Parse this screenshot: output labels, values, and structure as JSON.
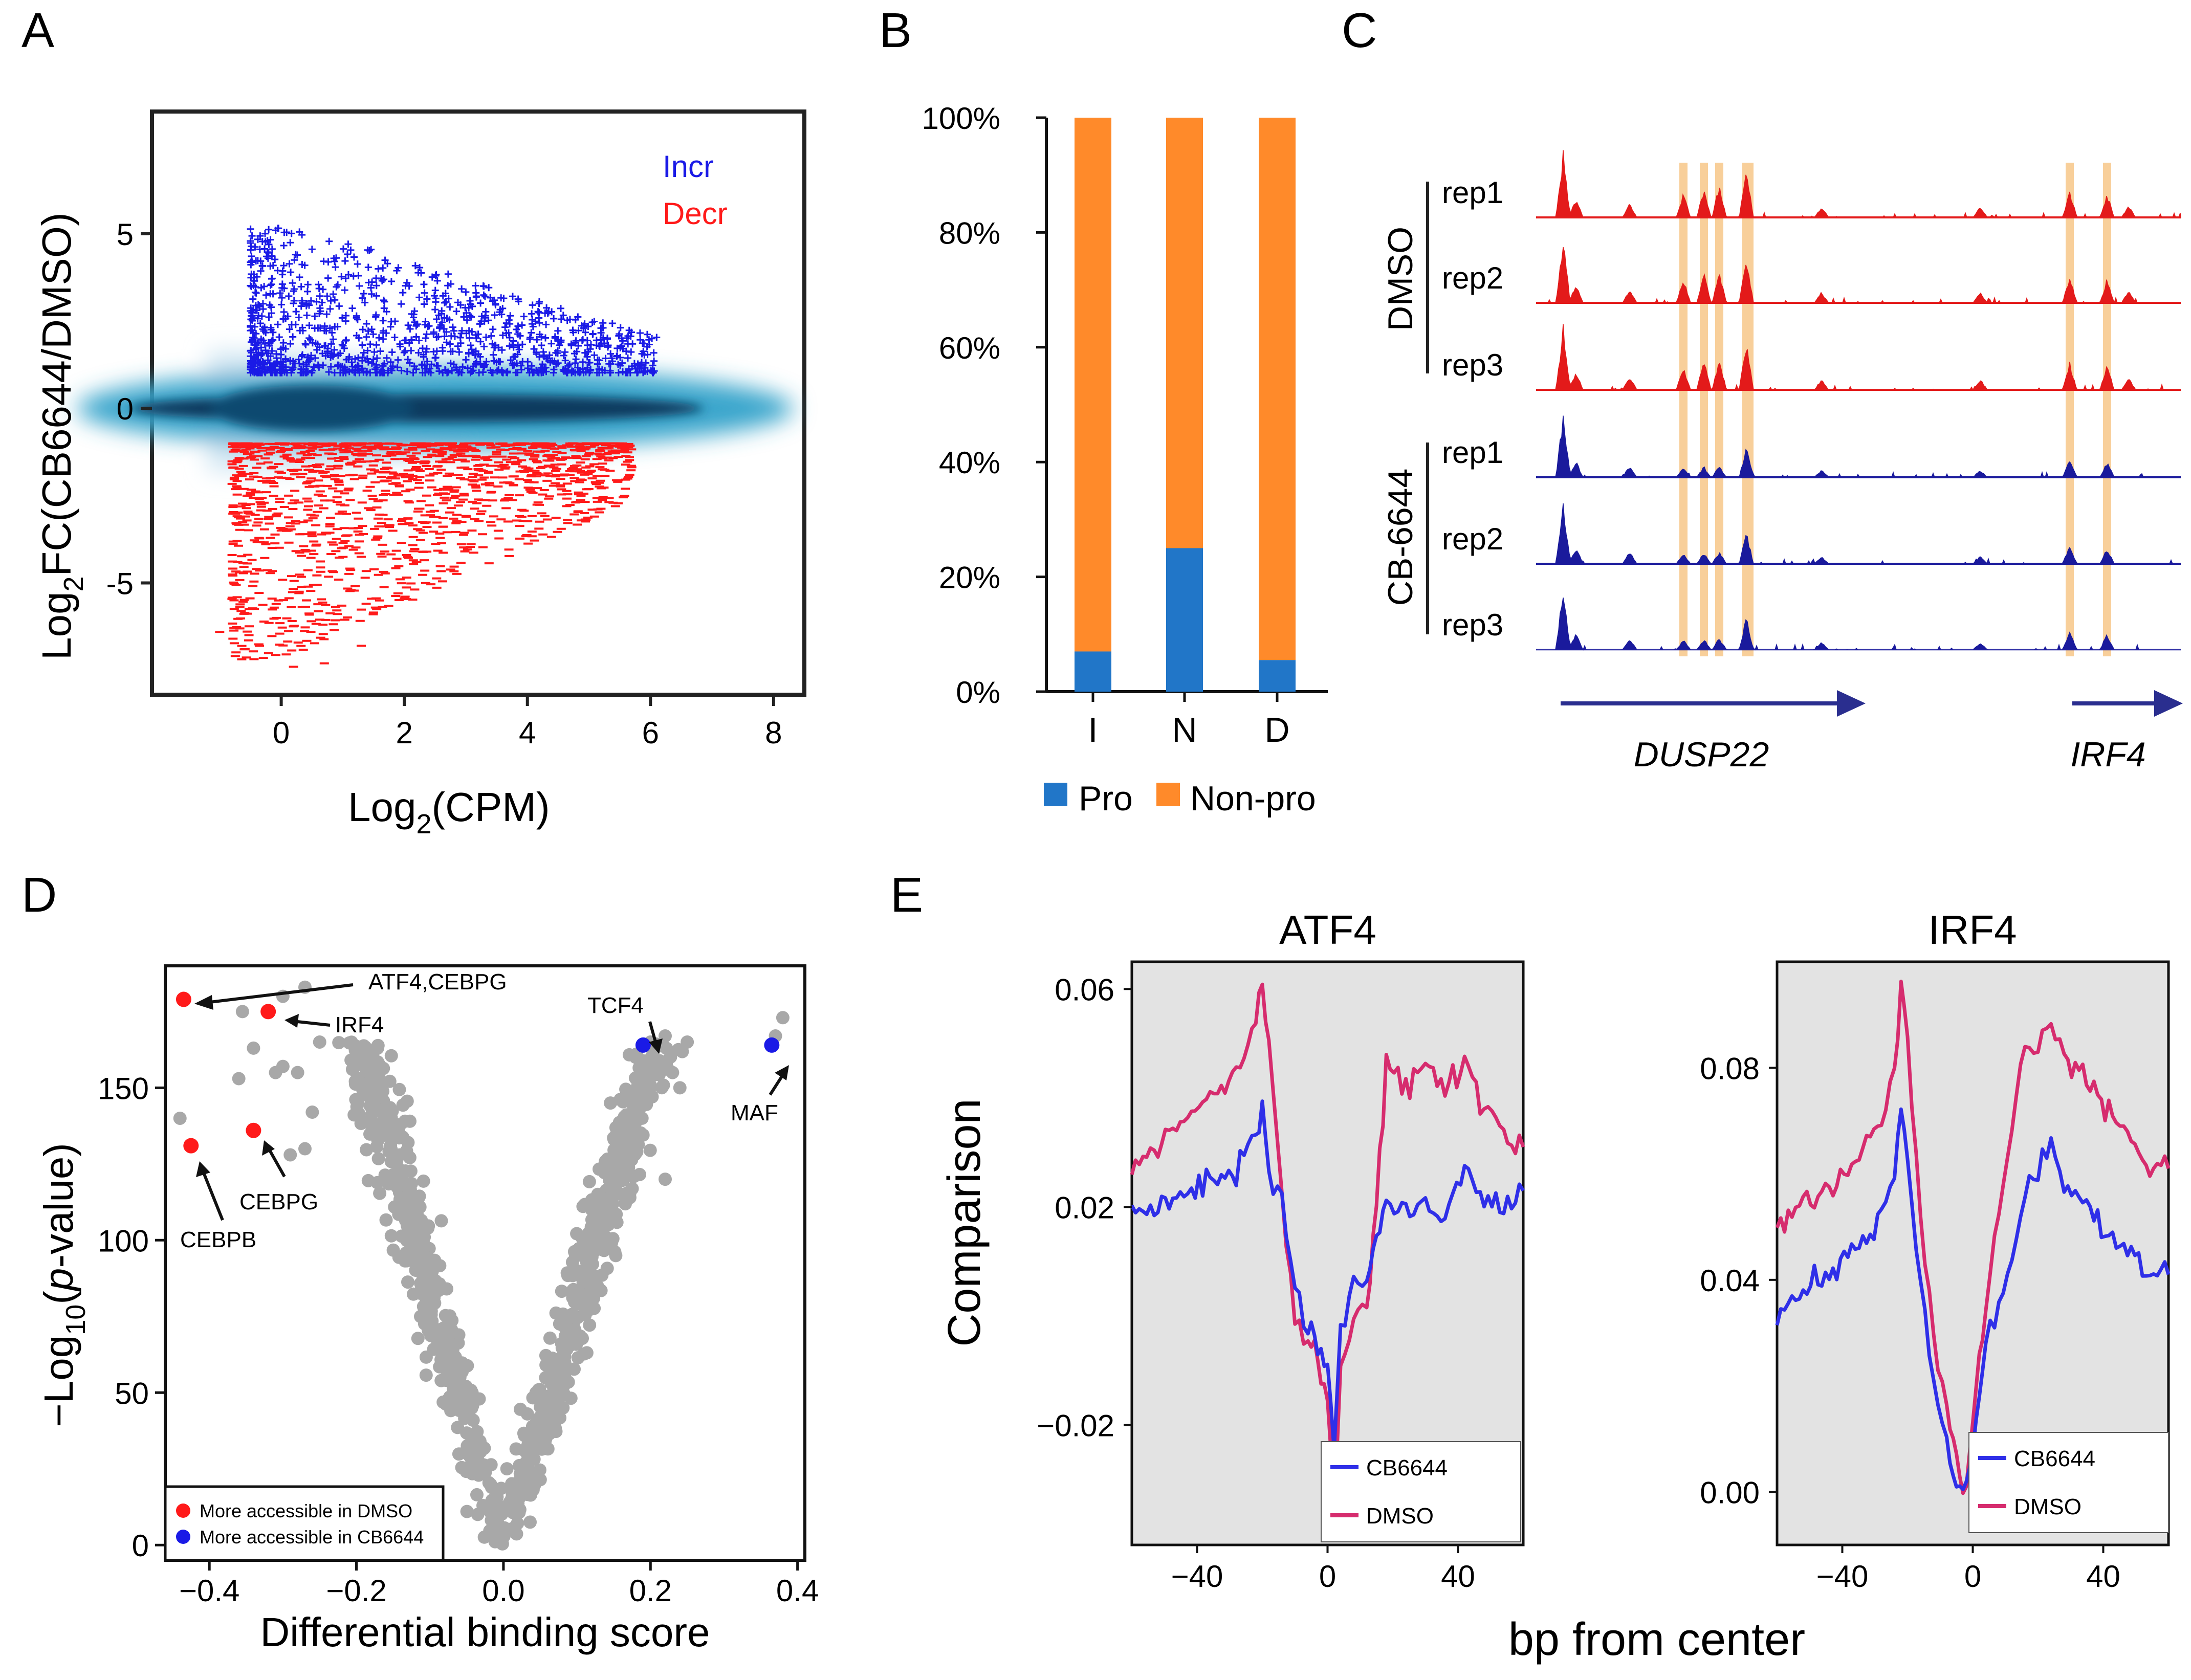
{
  "colors": {
    "incr": "#1a1ae6",
    "decr": "#ff1a1a",
    "pro": "#2176c8",
    "nonpro": "#ff8a2a",
    "dmso_track": "#e31a1a",
    "cb_track": "#1a1a9c",
    "highlight": "#f8cf9a",
    "gray_pt": "#a8a8a8",
    "cb_line": "#2f2fe8",
    "dmso_line": "#d62c6e",
    "panelE_bg": "#e3e3e3"
  },
  "panel_labels": {
    "A": "A",
    "B": "B",
    "C": "C",
    "D": "D",
    "E": "E"
  },
  "panelA": {
    "ylabel_pre": "Log",
    "ylabel_sub": "2",
    "ylabel_post": "FC(CB6644/DMSO)",
    "xlabel_pre": "Log",
    "xlabel_sub": "2",
    "xlabel_post": "(CPM)",
    "legend_incr": "Incr",
    "legend_decr": "Decr",
    "xticks": [
      "0",
      "2",
      "4",
      "6",
      "8"
    ],
    "yticks": [
      "5",
      "0",
      "-5"
    ]
  },
  "panelB": {
    "yticks": [
      "100%",
      "80%",
      "60%",
      "40%",
      "20%",
      "0%"
    ],
    "legend_pro": "Pro",
    "legend_nonpro": "Non-pro"
  },
  "panelC": {
    "group_dmso": "DMSO",
    "group_cb": "CB-6644",
    "tracks": [
      "rep1",
      "rep2",
      "rep3",
      "rep1",
      "rep2",
      "rep3"
    ],
    "gene1": "DUSP22",
    "gene2": "IRF4"
  },
  "panelD": {
    "ylabel": "−Log10(p-value)",
    "ylabel_pre": "−Log",
    "ylabel_sub": "10",
    "ylabel_mid": "(",
    "ylabel_p": "p",
    "ylabel_post": "-value)",
    "xlabel": "Differential binding score",
    "xticks": [
      "−0.4",
      "−0.2",
      "0.0",
      "0.2",
      "0.4"
    ],
    "yticks": [
      "0",
      "50",
      "100",
      "150"
    ],
    "ann_atf4": "ATF4,CEBPG",
    "ann_irf4": "IRF4",
    "ann_tcf4": "TCF4",
    "ann_maf": "MAF",
    "ann_cebpg": "CEBPG",
    "ann_cebpb": "CEBPB",
    "legend_dmso": "More accessible in DMSO",
    "legend_cb": "More accessible in CB6644"
  },
  "panelE": {
    "ylabel": "Comparison",
    "xlabel": "bp from center",
    "left_title": "ATF4",
    "right_title": "IRF4",
    "left_yticks": [
      "0.06",
      "0.02",
      "−0.02"
    ],
    "right_yticks": [
      "0.08",
      "0.04",
      "0.00"
    ],
    "xticks": [
      "−40",
      "0",
      "40"
    ],
    "legend_cb": "CB6644",
    "legend_dmso": "DMSO"
  },
  "chart_data": [
    {
      "type": "scatter",
      "panel": "A",
      "title": "",
      "xlabel": "Log2(CPM)",
      "ylabel": "Log2FC(CB6644/DMSO)",
      "xlim": [
        -2.1,
        8.5
      ],
      "ylim": [
        -8.2,
        8.5
      ],
      "series": [
        {
          "name": "Incr",
          "summary": "~1100 points with log2FC between 1 and 5.3, denser at low CPM"
        },
        {
          "name": "Decr",
          "summary": "~1500 points with log2FC between -1 and -7.4"
        },
        {
          "name": "Not significant",
          "summary": "density band centred at 0, narrowing from CPM -1 to 8"
        }
      ]
    },
    {
      "type": "bar",
      "panel": "B",
      "stacked": true,
      "title": "",
      "categories": [
        "I",
        "N",
        "D"
      ],
      "series": [
        {
          "name": "Pro",
          "values": [
            7,
            25,
            5.5
          ]
        },
        {
          "name": "Non-pro",
          "values": [
            93,
            75,
            94.5
          ]
        }
      ],
      "ylim": [
        0,
        100
      ],
      "ylabel": "%",
      "xlabel": ""
    },
    {
      "type": "scatter",
      "panel": "D",
      "title": "",
      "xlabel": "Differential binding score",
      "ylabel": "−Log10(p-value)",
      "xlim": [
        -0.46,
        0.41
      ],
      "ylim": [
        -5,
        190
      ],
      "highlighted": [
        {
          "label": "ATF4,CEBPG",
          "x": -0.435,
          "y": 179,
          "group": "More accessible in DMSO"
        },
        {
          "label": "IRF4",
          "x": -0.32,
          "y": 175,
          "group": "More accessible in DMSO"
        },
        {
          "label": "CEBPG",
          "x": -0.34,
          "y": 136,
          "group": "More accessible in DMSO"
        },
        {
          "label": "CEBPB",
          "x": -0.425,
          "y": 131,
          "group": "More accessible in DMSO"
        },
        {
          "label": "TCF4",
          "x": 0.19,
          "y": 164,
          "group": "More accessible in CB6644"
        },
        {
          "label": "MAF",
          "x": 0.365,
          "y": 164,
          "group": "More accessible in CB6644"
        }
      ],
      "background_summary": "~900 gray motifs forming a V shape, minimum at (0, 0), rising to ~170 at x=-0.3 and x=0.38"
    },
    {
      "type": "line",
      "panel": "E-left",
      "title": "ATF4",
      "xlabel": "bp from center",
      "ylabel": "Comparison",
      "x": [
        -60,
        -52,
        -44,
        -36,
        -28,
        -22,
        -20,
        -18,
        -14,
        -10,
        -6,
        -3,
        0,
        2,
        4,
        8,
        12,
        15,
        18,
        24,
        30,
        36,
        42,
        48,
        54,
        60
      ],
      "series": [
        {
          "name": "DMSO",
          "values": [
            0.027,
            0.031,
            0.036,
            0.041,
            0.045,
            0.054,
            0.061,
            0.05,
            0.022,
            0.0,
            -0.005,
            -0.008,
            -0.015,
            -0.036,
            -0.01,
            0.0,
            0.002,
            0.02,
            0.048,
            0.041,
            0.046,
            0.041,
            0.047,
            0.038,
            0.034,
            0.031
          ]
        },
        {
          "name": "CB6644",
          "values": [
            0.018,
            0.021,
            0.022,
            0.025,
            0.027,
            0.032,
            0.037,
            0.026,
            0.022,
            0.005,
            -0.002,
            -0.005,
            -0.01,
            -0.025,
            -0.004,
            0.006,
            0.006,
            0.015,
            0.022,
            0.019,
            0.021,
            0.018,
            0.028,
            0.021,
            0.019,
            0.023
          ]
        }
      ],
      "xlim": [
        -60,
        60
      ],
      "ylim": [
        -0.042,
        0.065
      ]
    },
    {
      "type": "line",
      "panel": "E-right",
      "title": "IRF4",
      "xlabel": "bp from center",
      "ylabel": "Comparison",
      "x": [
        -60,
        -52,
        -44,
        -36,
        -28,
        -24,
        -22,
        -20,
        -16,
        -12,
        -8,
        -6,
        -3,
        -1,
        2,
        4,
        8,
        12,
        16,
        20,
        24,
        28,
        36,
        44,
        52,
        60
      ],
      "series": [
        {
          "name": "DMSO",
          "values": [
            0.05,
            0.054,
            0.057,
            0.062,
            0.07,
            0.078,
            0.096,
            0.084,
            0.052,
            0.03,
            0.016,
            0.01,
            0.0,
            0.006,
            0.026,
            0.036,
            0.052,
            0.068,
            0.085,
            0.083,
            0.088,
            0.082,
            0.077,
            0.07,
            0.062,
            0.061
          ]
        },
        {
          "name": "CB6644",
          "values": [
            0.033,
            0.038,
            0.041,
            0.046,
            0.052,
            0.06,
            0.073,
            0.064,
            0.04,
            0.02,
            0.009,
            0.004,
            0.0,
            0.005,
            0.017,
            0.028,
            0.035,
            0.045,
            0.058,
            0.06,
            0.066,
            0.058,
            0.052,
            0.046,
            0.043,
            0.041
          ]
        }
      ],
      "xlim": [
        -60,
        60
      ],
      "ylim": [
        -0.01,
        0.1
      ]
    }
  ]
}
